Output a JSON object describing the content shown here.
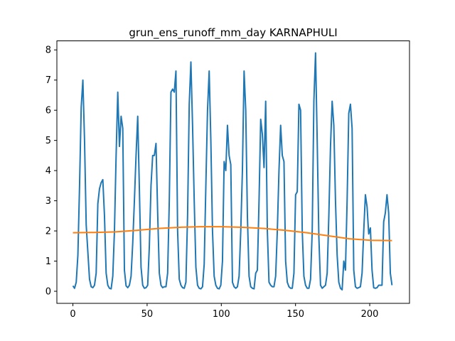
{
  "chart_data": {
    "type": "line",
    "title": "grun_ens_runoff_mm_day KARNAPHULI",
    "xlabel": "",
    "ylabel": "",
    "xlim": [
      -10.8,
      226.8
    ],
    "ylim": [
      -0.4,
      8.3
    ],
    "x_ticks": [
      0,
      50,
      100,
      150,
      200
    ],
    "y_ticks": [
      0,
      1,
      2,
      3,
      4,
      5,
      6,
      7,
      8
    ],
    "grid": false,
    "series": [
      {
        "color": "#1f77b4",
        "values": [
          0.18,
          0.1,
          0.3,
          1.2,
          3.5,
          6.1,
          7.0,
          5.0,
          2.2,
          1.3,
          0.4,
          0.15,
          0.12,
          0.2,
          0.6,
          2.9,
          3.4,
          3.6,
          3.7,
          2.5,
          0.6,
          0.2,
          0.1,
          0.08,
          0.5,
          2.0,
          4.5,
          6.6,
          4.8,
          5.8,
          5.4,
          0.7,
          0.18,
          0.12,
          0.2,
          0.5,
          1.6,
          3.0,
          4.5,
          5.8,
          3.4,
          0.8,
          0.2,
          0.1,
          0.12,
          0.2,
          1.5,
          3.5,
          4.5,
          4.5,
          4.9,
          2.6,
          0.6,
          0.2,
          0.12,
          0.15,
          0.15,
          0.6,
          3.0,
          6.6,
          6.7,
          6.6,
          7.3,
          2.0,
          0.4,
          0.2,
          0.12,
          0.1,
          0.3,
          2.5,
          6.2,
          7.6,
          5.5,
          3.0,
          0.8,
          0.2,
          0.1,
          0.08,
          0.15,
          0.9,
          3.5,
          6.0,
          7.3,
          5.0,
          2.0,
          0.5,
          0.2,
          0.1,
          0.08,
          0.2,
          1.0,
          4.3,
          4.0,
          5.5,
          4.5,
          4.2,
          0.3,
          0.15,
          0.1,
          0.15,
          0.5,
          2.0,
          4.0,
          7.3,
          6.0,
          2.5,
          0.5,
          0.15,
          0.1,
          0.08,
          0.6,
          0.7,
          3.0,
          5.7,
          5.2,
          4.1,
          6.3,
          2.0,
          0.3,
          0.2,
          0.15,
          0.15,
          0.5,
          2.0,
          4.0,
          5.5,
          4.5,
          4.3,
          1.0,
          0.3,
          0.15,
          0.1,
          0.1,
          0.6,
          3.2,
          3.3,
          6.2,
          6.0,
          2.0,
          0.5,
          0.2,
          0.1,
          0.1,
          0.4,
          2.0,
          6.3,
          7.9,
          5.0,
          1.8,
          0.2,
          0.1,
          0.15,
          0.2,
          0.6,
          2.5,
          4.8,
          6.3,
          5.5,
          3.0,
          1.2,
          0.3,
          0.1,
          0.05,
          1.0,
          0.7,
          3.0,
          5.9,
          6.2,
          5.4,
          0.7,
          0.15,
          0.1,
          0.12,
          0.15,
          0.6,
          2.0,
          3.2,
          2.8,
          1.9,
          2.1,
          0.7,
          0.12,
          0.1,
          0.12,
          0.2,
          0.2,
          0.2,
          2.3,
          2.6,
          3.2,
          2.6,
          0.6,
          0.2
        ]
      },
      {
        "color": "#ff7f0e",
        "values": [
          1.94,
          1.95,
          1.97,
          2.02,
          2.08,
          2.12,
          2.14,
          2.14,
          2.12,
          2.08,
          2.02,
          1.94,
          1.84,
          1.74,
          1.69,
          1.68
        ]
      }
    ]
  }
}
